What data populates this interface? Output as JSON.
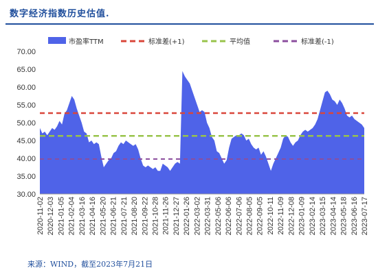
{
  "title": "数字经济指数历史估值.",
  "source": "来源：WIND，截至2023年7月21日",
  "colors": {
    "title": "#1f4e9c",
    "area": "#4f63e8",
    "upper": "#d9463a",
    "mean": "#98c34a",
    "lower": "#8b4e9e"
  },
  "chart_data": {
    "type": "area",
    "title": "",
    "xlabel": "",
    "ylabel": "",
    "ylim": [
      30,
      70
    ],
    "yticks": [
      "70.00",
      "65.00",
      "60.00",
      "55.00",
      "50.00",
      "45.00",
      "40.00",
      "35.00",
      "30.00"
    ],
    "xtick_labels": [
      "2020-11-02",
      "2020-12-03",
      "2021-01-05",
      "2021-02-04",
      "2021-03-16",
      "2021-04-16",
      "2021-05-20",
      "2021-06-21",
      "2021-07-21",
      "2021-08-20",
      "2021-09-22",
      "2021-10-28",
      "2021-11-26",
      "2021-12-27",
      "2022-01-26",
      "2022-03-02",
      "2022-03-31",
      "2022-05-06",
      "2022-06-06",
      "2022-07-06",
      "2022-08-05",
      "2022-09-05",
      "2022-10-11",
      "2022-11-09",
      "2022-12-08",
      "2023-01-09",
      "2023-02-14",
      "2023-03-15",
      "2023-04-14",
      "2023-05-18",
      "2023-06-16",
      "2023-07-17"
    ],
    "legend_position": "top",
    "series": [
      {
        "name": "市盈率TTM",
        "type": "area",
        "values": [
          48.5,
          47.0,
          47.5,
          46.5,
          47.5,
          48.5,
          48.0,
          49.0,
          50.5,
          49.5,
          52.5,
          53.5,
          55.5,
          57.5,
          56.5,
          54.0,
          52.0,
          50.0,
          47.5,
          47.0,
          44.5,
          45.0,
          44.0,
          44.5,
          44.0,
          40.5,
          37.5,
          38.5,
          39.5,
          40.0,
          41.5,
          42.0,
          43.5,
          44.5,
          44.0,
          45.0,
          44.5,
          44.0,
          43.5,
          44.0,
          42.5,
          40.0,
          38.0,
          37.5,
          38.0,
          37.5,
          37.0,
          37.5,
          36.5,
          36.5,
          38.5,
          38.0,
          37.5,
          36.5,
          37.5,
          38.5,
          39.0,
          38.5,
          64.5,
          63.0,
          62.0,
          61.0,
          59.0,
          57.0,
          55.0,
          53.0,
          53.5,
          53.0,
          50.0,
          48.5,
          46.0,
          45.0,
          42.0,
          41.5,
          40.0,
          38.5,
          39.5,
          43.0,
          45.5,
          46.0,
          46.5,
          46.5,
          47.0,
          46.5,
          45.0,
          45.5,
          44.0,
          43.0,
          42.5,
          43.0,
          41.0,
          42.0,
          40.5,
          38.5,
          36.5,
          38.5,
          40.0,
          41.5,
          43.0,
          45.5,
          46.5,
          46.0,
          44.5,
          43.5,
          44.5,
          45.0,
          46.5,
          47.5,
          48.0,
          47.5,
          48.0,
          48.5,
          49.5,
          51.0,
          53.5,
          56.0,
          58.5,
          59.0,
          58.0,
          56.5,
          56.0,
          55.0,
          56.5,
          55.5,
          54.0,
          52.0,
          51.5,
          52.0,
          51.0,
          50.5,
          50.0,
          49.5,
          48.5
        ]
      },
      {
        "name": "标准差(+1)",
        "type": "dashed-line",
        "value": 52.7
      },
      {
        "name": "平均值",
        "type": "dashed-line",
        "value": 46.3
      },
      {
        "name": "标准差(-1)",
        "type": "dashed-line",
        "value": 39.8
      }
    ]
  }
}
